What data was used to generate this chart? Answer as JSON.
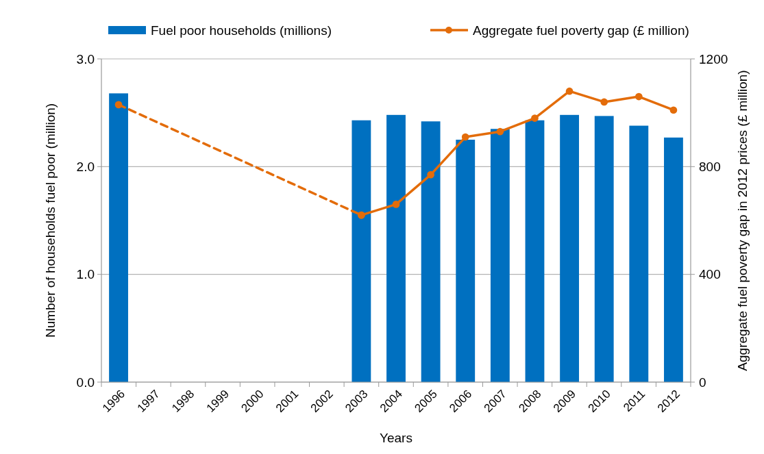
{
  "chart_data": {
    "type": "bar",
    "xlabel": "Years",
    "ylabel": "Number of households fuel poor (million)",
    "y2label": "Aggregate fuel poverty gap in 2012 prices (£ million)",
    "categories": [
      "1996",
      "1997",
      "1998",
      "1999",
      "2000",
      "2001",
      "2002",
      "2003",
      "2004",
      "2005",
      "2006",
      "2007",
      "2008",
      "2009",
      "2010",
      "2011",
      "2012"
    ],
    "series": [
      {
        "name": "Fuel poor households (millions)",
        "color": "#0070c0",
        "values": [
          2.68,
          null,
          null,
          null,
          null,
          null,
          null,
          2.43,
          2.48,
          2.42,
          2.25,
          2.35,
          2.43,
          2.48,
          2.47,
          2.38,
          2.27
        ]
      },
      {
        "name": "Aggregate fuel poverty gap (£ million)",
        "type": "line",
        "axis": "y2",
        "color": "#e36c0a",
        "marker": "circle",
        "line_style": "solid",
        "values": [
          null,
          null,
          null,
          null,
          null,
          null,
          null,
          620,
          660,
          770,
          910,
          930,
          980,
          1080,
          1040,
          1060,
          1010
        ]
      },
      {
        "type": "line",
        "axis": "y2",
        "color": "#e36c0a",
        "marker": "circle",
        "line_style": "dashed",
        "values": [
          1030,
          null,
          null,
          null,
          null,
          null,
          null,
          620,
          null,
          null,
          null,
          null,
          null,
          null,
          null,
          null,
          null
        ]
      }
    ],
    "ylim": [
      0,
      3
    ],
    "yticks": [
      {
        "value": 0,
        "label": "0.0"
      },
      {
        "value": 1,
        "label": "1.0"
      },
      {
        "value": 2,
        "label": "2.0"
      },
      {
        "value": 3,
        "label": "3.0"
      }
    ],
    "y2lim": [
      0,
      1200
    ],
    "y2ticks": [
      0,
      400,
      800,
      1200
    ],
    "grid": "y",
    "legend": "top"
  }
}
